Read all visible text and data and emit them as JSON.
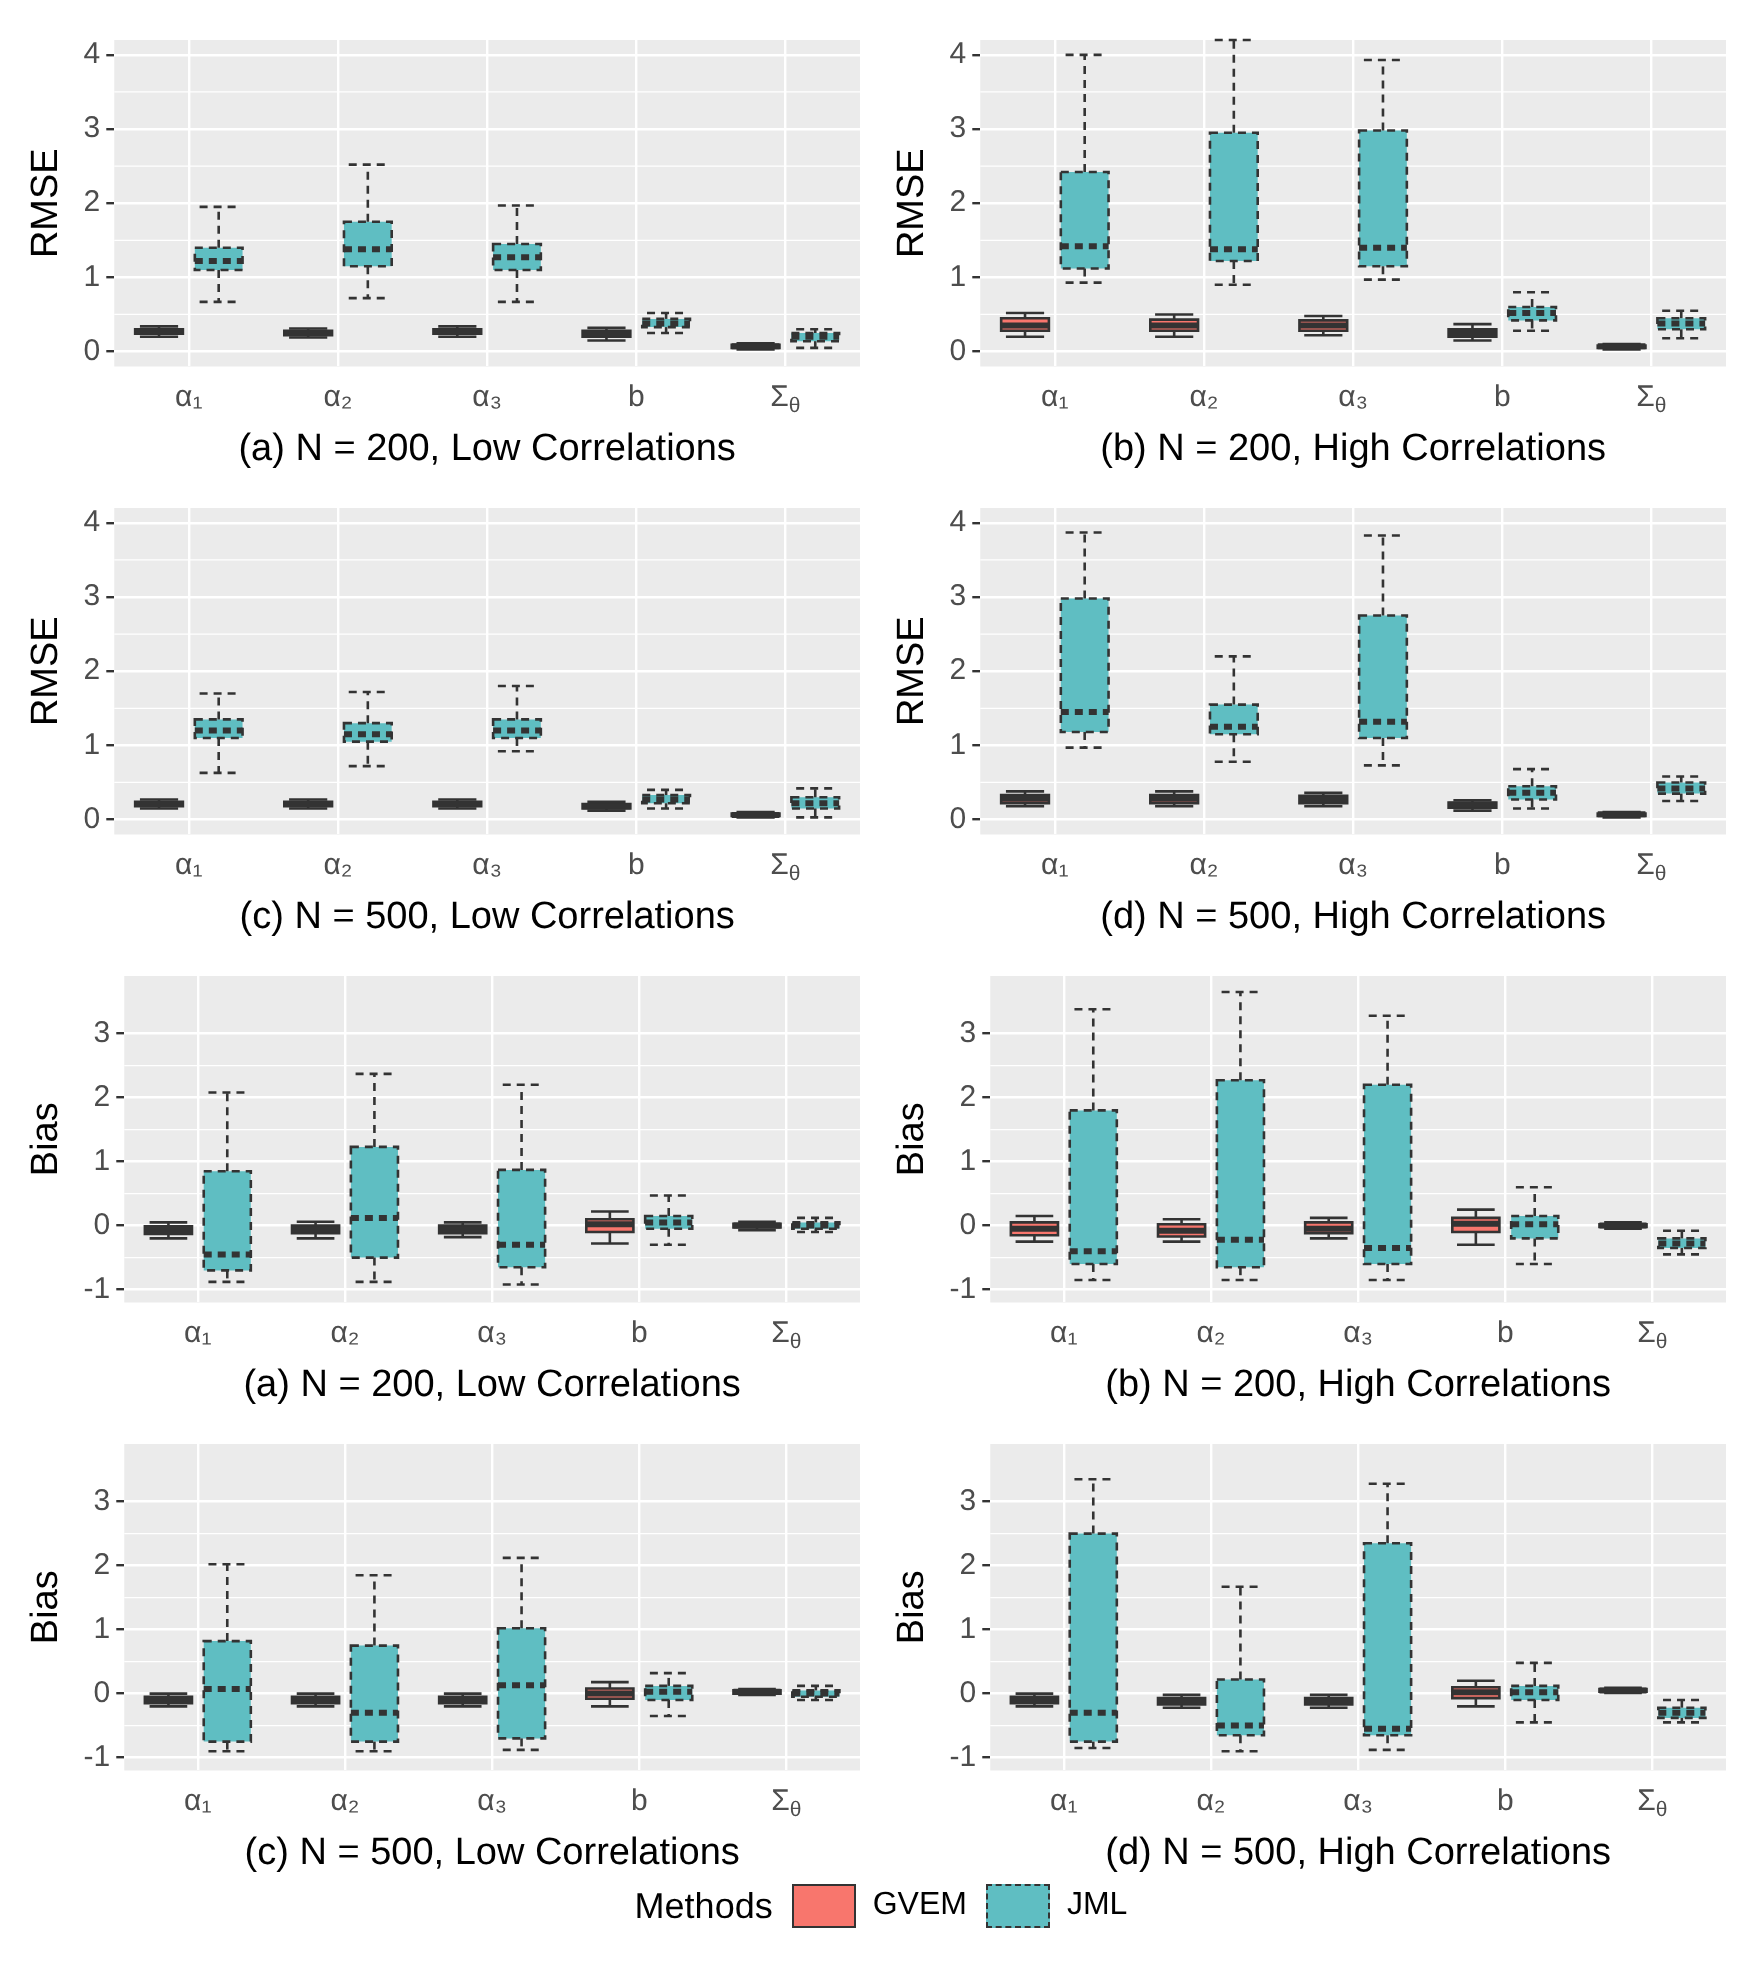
{
  "chart_data": [
    {
      "type": "box",
      "xlabel": "(a) N = 200, Low Correlations",
      "ylabel": "RMSE",
      "categories": [
        "α₁",
        "α₂",
        "α₃",
        "b",
        "Σ$_{θ}$"
      ],
      "ylim": [
        -0.2,
        4.2
      ],
      "yticks": [
        0,
        1,
        2,
        3,
        4
      ],
      "grid": true,
      "legend": "bottom",
      "legend_title": "Methods",
      "series": [
        {
          "name": "GVEM",
          "color": "#f8766d",
          "line_style": "solid",
          "boxes": [
            {
              "low": 0.2,
              "q1": 0.24,
              "median": 0.27,
              "q3": 0.3,
              "high": 0.34
            },
            {
              "low": 0.19,
              "q1": 0.22,
              "median": 0.25,
              "q3": 0.28,
              "high": 0.31
            },
            {
              "low": 0.2,
              "q1": 0.24,
              "median": 0.27,
              "q3": 0.3,
              "high": 0.34
            },
            {
              "low": 0.15,
              "q1": 0.2,
              "median": 0.24,
              "q3": 0.28,
              "high": 0.32
            },
            {
              "low": 0.03,
              "q1": 0.05,
              "median": 0.07,
              "q3": 0.09,
              "high": 0.11
            }
          ]
        },
        {
          "name": "JML",
          "color": "#5fbec2",
          "line_style": "dashed",
          "boxes": [
            {
              "low": 0.67,
              "q1": 1.1,
              "median": 1.22,
              "q3": 1.4,
              "high": 1.95
            },
            {
              "low": 0.72,
              "q1": 1.15,
              "median": 1.38,
              "q3": 1.75,
              "high": 2.52
            },
            {
              "low": 0.67,
              "q1": 1.1,
              "median": 1.27,
              "q3": 1.45,
              "high": 1.97
            },
            {
              "low": 0.25,
              "q1": 0.33,
              "median": 0.38,
              "q3": 0.44,
              "high": 0.52
            },
            {
              "low": 0.05,
              "q1": 0.14,
              "median": 0.2,
              "q3": 0.25,
              "high": 0.3
            }
          ]
        }
      ]
    },
    {
      "type": "box",
      "xlabel": "(b) N = 200, High Correlations",
      "ylabel": "RMSE",
      "categories": [
        "α₁",
        "α₂",
        "α₃",
        "b",
        "Σ$_{θ}$"
      ],
      "ylim": [
        -0.2,
        4.2
      ],
      "yticks": [
        0,
        1,
        2,
        3,
        4
      ],
      "grid": true,
      "series": [
        {
          "color": "#f8766d",
          "line_style": "solid",
          "boxes": [
            {
              "low": 0.2,
              "q1": 0.28,
              "median": 0.35,
              "q3": 0.45,
              "high": 0.52
            },
            {
              "low": 0.2,
              "q1": 0.28,
              "median": 0.35,
              "q3": 0.43,
              "high": 0.5
            },
            {
              "low": 0.22,
              "q1": 0.28,
              "median": 0.35,
              "q3": 0.42,
              "high": 0.48
            },
            {
              "low": 0.15,
              "q1": 0.2,
              "median": 0.25,
              "q3": 0.3,
              "high": 0.37
            },
            {
              "low": 0.03,
              "q1": 0.05,
              "median": 0.07,
              "q3": 0.08,
              "high": 0.1
            }
          ]
        },
        {
          "color": "#5fbec2",
          "line_style": "dashed",
          "boxes": [
            {
              "low": 0.93,
              "q1": 1.12,
              "median": 1.42,
              "q3": 2.42,
              "high": 4.0
            },
            {
              "low": 0.9,
              "q1": 1.22,
              "median": 1.38,
              "q3": 2.95,
              "high": 4.2
            },
            {
              "low": 0.97,
              "q1": 1.15,
              "median": 1.4,
              "q3": 2.98,
              "high": 3.93
            },
            {
              "low": 0.28,
              "q1": 0.42,
              "median": 0.52,
              "q3": 0.6,
              "high": 0.8
            },
            {
              "low": 0.18,
              "q1": 0.3,
              "median": 0.38,
              "q3": 0.45,
              "high": 0.55
            }
          ]
        }
      ]
    },
    {
      "type": "box",
      "xlabel": "(c) N = 500, Low Correlations",
      "ylabel": "RMSE",
      "categories": [
        "α₁",
        "α₂",
        "α₃",
        "b",
        "Σ$_{θ}$"
      ],
      "ylim": [
        -0.2,
        4.2
      ],
      "yticks": [
        0,
        1,
        2,
        3,
        4
      ],
      "grid": true,
      "series": [
        {
          "color": "#f8766d",
          "line_style": "solid",
          "boxes": [
            {
              "low": 0.15,
              "q1": 0.18,
              "median": 0.21,
              "q3": 0.24,
              "high": 0.27
            },
            {
              "low": 0.15,
              "q1": 0.18,
              "median": 0.21,
              "q3": 0.24,
              "high": 0.27
            },
            {
              "low": 0.15,
              "q1": 0.18,
              "median": 0.21,
              "q3": 0.24,
              "high": 0.27
            },
            {
              "low": 0.12,
              "q1": 0.15,
              "median": 0.18,
              "q3": 0.21,
              "high": 0.24
            },
            {
              "low": 0.03,
              "q1": 0.05,
              "median": 0.06,
              "q3": 0.08,
              "high": 0.1
            }
          ]
        },
        {
          "color": "#5fbec2",
          "line_style": "dashed",
          "boxes": [
            {
              "low": 0.63,
              "q1": 1.1,
              "median": 1.2,
              "q3": 1.35,
              "high": 1.7
            },
            {
              "low": 0.72,
              "q1": 1.05,
              "median": 1.15,
              "q3": 1.3,
              "high": 1.72
            },
            {
              "low": 0.92,
              "q1": 1.1,
              "median": 1.2,
              "q3": 1.35,
              "high": 1.8
            },
            {
              "low": 0.15,
              "q1": 0.22,
              "median": 0.27,
              "q3": 0.33,
              "high": 0.4
            },
            {
              "low": 0.03,
              "q1": 0.15,
              "median": 0.22,
              "q3": 0.3,
              "high": 0.42
            }
          ]
        }
      ]
    },
    {
      "type": "box",
      "xlabel": "(d) N = 500, High Correlations",
      "ylabel": "RMSE",
      "categories": [
        "α₁",
        "α₂",
        "α₃",
        "b",
        "Σ$_{θ}$"
      ],
      "ylim": [
        -0.2,
        4.2
      ],
      "yticks": [
        0,
        1,
        2,
        3,
        4
      ],
      "grid": true,
      "series": [
        {
          "color": "#f8766d",
          "line_style": "solid",
          "boxes": [
            {
              "low": 0.18,
              "q1": 0.22,
              "median": 0.28,
              "q3": 0.33,
              "high": 0.38
            },
            {
              "low": 0.18,
              "q1": 0.22,
              "median": 0.28,
              "q3": 0.33,
              "high": 0.38
            },
            {
              "low": 0.18,
              "q1": 0.22,
              "median": 0.27,
              "q3": 0.32,
              "high": 0.36
            },
            {
              "low": 0.12,
              "q1": 0.16,
              "median": 0.2,
              "q3": 0.23,
              "high": 0.26
            },
            {
              "low": 0.03,
              "q1": 0.05,
              "median": 0.07,
              "q3": 0.08,
              "high": 0.1
            }
          ]
        },
        {
          "color": "#5fbec2",
          "line_style": "dashed",
          "boxes": [
            {
              "low": 0.97,
              "q1": 1.18,
              "median": 1.45,
              "q3": 2.98,
              "high": 3.87
            },
            {
              "low": 0.78,
              "q1": 1.15,
              "median": 1.25,
              "q3": 1.55,
              "high": 2.2
            },
            {
              "low": 0.73,
              "q1": 1.1,
              "median": 1.32,
              "q3": 2.75,
              "high": 3.83
            },
            {
              "low": 0.15,
              "q1": 0.27,
              "median": 0.36,
              "q3": 0.45,
              "high": 0.68
            },
            {
              "low": 0.25,
              "q1": 0.35,
              "median": 0.42,
              "q3": 0.5,
              "high": 0.58
            }
          ]
        }
      ]
    },
    {
      "type": "box",
      "xlabel": "(a) N = 200, Low Correlations",
      "ylabel": "Bias",
      "categories": [
        "α₁",
        "α₂",
        "α₃",
        "b",
        "Σ$_{θ}$"
      ],
      "ylim": [
        -1.2,
        3.9
      ],
      "yticks": [
        -1,
        0,
        1,
        2,
        3
      ],
      "grid": true,
      "series": [
        {
          "color": "#f8766d",
          "line_style": "solid",
          "boxes": [
            {
              "low": -0.2,
              "q1": -0.13,
              "median": -0.07,
              "q3": -0.01,
              "high": 0.05
            },
            {
              "low": -0.2,
              "q1": -0.12,
              "median": -0.06,
              "q3": 0,
              "high": 0.06
            },
            {
              "low": -0.18,
              "q1": -0.12,
              "median": -0.06,
              "q3": 0,
              "high": 0.05
            },
            {
              "low": -0.28,
              "q1": -0.1,
              "median": 0.02,
              "q3": 0.1,
              "high": 0.22
            },
            {
              "low": -0.07,
              "q1": -0.03,
              "median": 0,
              "q3": 0.03,
              "high": 0.06
            }
          ]
        },
        {
          "color": "#5fbec2",
          "line_style": "dashed",
          "boxes": [
            {
              "low": -0.88,
              "q1": -0.7,
              "median": -0.45,
              "q3": 0.85,
              "high": 2.08
            },
            {
              "low": -0.88,
              "q1": -0.5,
              "median": 0.12,
              "q3": 1.23,
              "high": 2.37
            },
            {
              "low": -0.92,
              "q1": -0.65,
              "median": -0.3,
              "q3": 0.87,
              "high": 2.2
            },
            {
              "low": -0.3,
              "q1": -0.05,
              "median": 0.05,
              "q3": 0.15,
              "high": 0.47
            },
            {
              "low": -0.1,
              "q1": -0.05,
              "median": 0,
              "q3": 0.05,
              "high": 0.12
            }
          ]
        }
      ]
    },
    {
      "type": "box",
      "xlabel": "(b) N = 200, High Correlations",
      "ylabel": "Bias",
      "categories": [
        "α₁",
        "α₂",
        "α₃",
        "b",
        "Σ$_{θ}$"
      ],
      "ylim": [
        -1.2,
        3.9
      ],
      "yticks": [
        -1,
        0,
        1,
        2,
        3
      ],
      "grid": true,
      "series": [
        {
          "color": "#f8766d",
          "line_style": "solid",
          "boxes": [
            {
              "low": -0.25,
              "q1": -0.15,
              "median": -0.05,
              "q3": 0.05,
              "high": 0.15
            },
            {
              "low": -0.25,
              "q1": -0.17,
              "median": -0.08,
              "q3": 0.02,
              "high": 0.1
            },
            {
              "low": -0.2,
              "q1": -0.12,
              "median": -0.05,
              "q3": 0.05,
              "high": 0.12
            },
            {
              "low": -0.3,
              "q1": -0.1,
              "median": 0.03,
              "q3": 0.12,
              "high": 0.25
            },
            {
              "low": -0.05,
              "q1": -0.02,
              "median": 0,
              "q3": 0.02,
              "high": 0.05
            }
          ]
        },
        {
          "color": "#5fbec2",
          "line_style": "dashed",
          "boxes": [
            {
              "low": -0.85,
              "q1": -0.6,
              "median": -0.4,
              "q3": 1.8,
              "high": 3.38
            },
            {
              "low": -0.85,
              "q1": -0.65,
              "median": -0.22,
              "q3": 2.27,
              "high": 3.65
            },
            {
              "low": -0.85,
              "q1": -0.6,
              "median": -0.35,
              "q3": 2.2,
              "high": 3.28
            },
            {
              "low": -0.6,
              "q1": -0.2,
              "median": 0.02,
              "q3": 0.15,
              "high": 0.6
            },
            {
              "low": -0.45,
              "q1": -0.35,
              "median": -0.28,
              "q3": -0.2,
              "high": -0.08
            }
          ]
        }
      ]
    },
    {
      "type": "box",
      "xlabel": "(c) N = 500, Low Correlations",
      "ylabel": "Bias",
      "categories": [
        "α₁",
        "α₂",
        "α₃",
        "b",
        "Σ$_{θ}$"
      ],
      "ylim": [
        -1.2,
        3.9
      ],
      "yticks": [
        -1,
        0,
        1,
        2,
        3
      ],
      "grid": true,
      "series": [
        {
          "color": "#f8766d",
          "line_style": "solid",
          "boxes": [
            {
              "low": -0.2,
              "q1": -0.15,
              "median": -0.1,
              "q3": -0.05,
              "high": 0
            },
            {
              "low": -0.2,
              "q1": -0.15,
              "median": -0.1,
              "q3": -0.05,
              "high": 0
            },
            {
              "low": -0.2,
              "q1": -0.15,
              "median": -0.1,
              "q3": -0.05,
              "high": 0
            },
            {
              "low": -0.2,
              "q1": -0.08,
              "median": 0,
              "q3": 0.08,
              "high": 0.18
            },
            {
              "low": -0.02,
              "q1": 0,
              "median": 0.03,
              "q3": 0.05,
              "high": 0.07
            }
          ]
        },
        {
          "color": "#5fbec2",
          "line_style": "dashed",
          "boxes": [
            {
              "low": -0.9,
              "q1": -0.75,
              "median": 0.07,
              "q3": 0.82,
              "high": 2.02
            },
            {
              "low": -0.9,
              "q1": -0.75,
              "median": -0.3,
              "q3": 0.75,
              "high": 1.85
            },
            {
              "low": -0.88,
              "q1": -0.7,
              "median": 0.13,
              "q3": 1.02,
              "high": 2.12
            },
            {
              "low": -0.35,
              "q1": -0.1,
              "median": 0.03,
              "q3": 0.12,
              "high": 0.32
            },
            {
              "low": -0.1,
              "q1": -0.05,
              "median": 0,
              "q3": 0.05,
              "high": 0.12
            }
          ]
        }
      ]
    },
    {
      "type": "box",
      "xlabel": "(d) N = 500, High Correlations",
      "ylabel": "Bias",
      "categories": [
        "α₁",
        "α₂",
        "α₃",
        "b",
        "Σ$_{θ}$"
      ],
      "ylim": [
        -1.2,
        3.9
      ],
      "yticks": [
        -1,
        0,
        1,
        2,
        3
      ],
      "grid": true,
      "series": [
        {
          "color": "#f8766d",
          "line_style": "solid",
          "boxes": [
            {
              "low": -0.2,
              "q1": -0.15,
              "median": -0.1,
              "q3": -0.05,
              "high": 0
            },
            {
              "low": -0.22,
              "q1": -0.17,
              "median": -0.12,
              "q3": -0.07,
              "high": -0.02
            },
            {
              "low": -0.22,
              "q1": -0.17,
              "median": -0.12,
              "q3": -0.07,
              "high": -0.02
            },
            {
              "low": -0.2,
              "q1": -0.07,
              "median": 0.02,
              "q3": 0.1,
              "high": 0.2
            },
            {
              "low": 0.01,
              "q1": 0.03,
              "median": 0.05,
              "q3": 0.07,
              "high": 0.09
            }
          ]
        },
        {
          "color": "#5fbec2",
          "line_style": "dashed",
          "boxes": [
            {
              "low": -0.85,
              "q1": -0.75,
              "median": -0.3,
              "q3": 2.5,
              "high": 3.35
            },
            {
              "low": -0.9,
              "q1": -0.65,
              "median": -0.5,
              "q3": 0.22,
              "high": 1.67
            },
            {
              "low": -0.88,
              "q1": -0.65,
              "median": -0.55,
              "q3": 2.35,
              "high": 3.28
            },
            {
              "low": -0.45,
              "q1": -0.1,
              "median": 0.02,
              "q3": 0.12,
              "high": 0.48
            },
            {
              "low": -0.45,
              "q1": -0.38,
              "median": -0.3,
              "q3": -0.22,
              "high": -0.1
            }
          ]
        }
      ]
    }
  ]
}
